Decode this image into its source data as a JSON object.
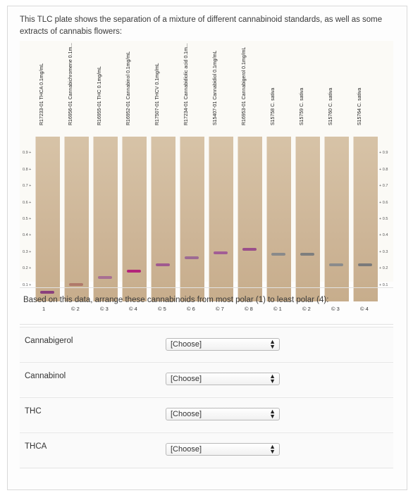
{
  "question": {
    "intro_text": "This TLC plate shows the separation of a mixture of different cannabinoid standards, as well as some extracts of cannabis flowers:",
    "prompt": "Based on this data, arrange these cannabinoids from most polar (1) to least polar (4):"
  },
  "plate": {
    "lanes": [
      {
        "label": "R17233-01 THCA 0.1mg/mL",
        "band_rf": 0.05,
        "color": "#8a3f7d"
      },
      {
        "label": "R16956-01 Cannabichromene 0.1m...",
        "band_rf": 0.1,
        "color": "#b07a6a"
      },
      {
        "label": "R16955-01 THC 0.1mg/mL",
        "band_rf": 0.14,
        "color": "#a86f92"
      },
      {
        "label": "R16952-01 Cannabinol 0.1mg/mL",
        "band_rf": 0.18,
        "color": "#b3247a"
      },
      {
        "label": "R17507-01 THCV 0.1mg/mL",
        "band_rf": 0.22,
        "color": "#a05a8f"
      },
      {
        "label": "R17234-01 Cannabidiolic acid 0.1m...",
        "band_rf": 0.26,
        "color": "#9d6a93"
      },
      {
        "label": "S15407-01 Cannabidiol 0.1mg/mL",
        "band_rf": 0.29,
        "color": "#a25d95"
      },
      {
        "label": "R16953-01 Cannabigerol 0.1mg/mL",
        "band_rf": 0.31,
        "color": "#9a4f8a"
      },
      {
        "label": "S15758 C. sativa",
        "band_rf": 0.28,
        "color": "#8a8a8a"
      },
      {
        "label": "S15759 C. sativa",
        "band_rf": 0.28,
        "color": "#7e7e7e"
      },
      {
        "label": "S15760 C. sativa",
        "band_rf": 0.22,
        "color": "#8b8b8b"
      },
      {
        "label": "S15764 C. sativa",
        "band_rf": 0.22,
        "color": "#7a7a7a"
      }
    ],
    "rf_ticks": [
      "0.9",
      "0.8",
      "0.7",
      "0.6",
      "0.5",
      "0.4",
      "0.3",
      "0.2",
      "0.1"
    ],
    "lane_numbers_left": [
      "1",
      "2",
      "3",
      "4",
      "5",
      "6",
      "7",
      "8"
    ],
    "lane_numbers_right": [
      "1",
      "2",
      "3",
      "4"
    ]
  },
  "answers": {
    "rows": [
      {
        "label": "Cannabigerol",
        "selected": "[Choose]"
      },
      {
        "label": "Cannabinol",
        "selected": "[Choose]"
      },
      {
        "label": "THC",
        "selected": "[Choose]"
      },
      {
        "label": "THCA",
        "selected": "[Choose]"
      }
    ]
  }
}
